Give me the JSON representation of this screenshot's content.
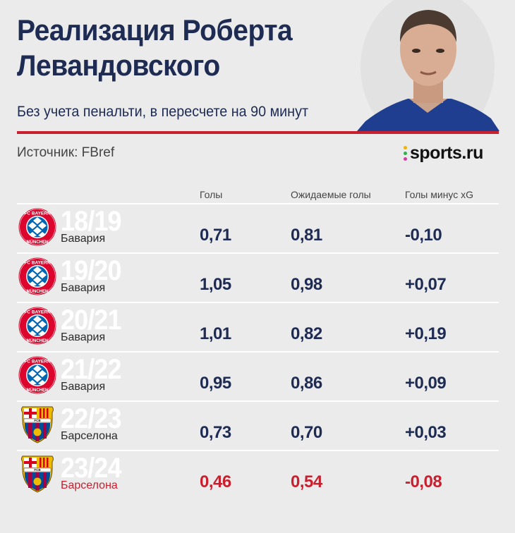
{
  "header": {
    "title": "Реализация Роберта Левандовского",
    "subtitle": "Без учета пенальти, в пересчете на 90 минут",
    "source": "Источник: FBref",
    "logo_text": "sports.ru"
  },
  "columns": [
    "Голы",
    "Ожидаемые голы",
    "Голы минус xG"
  ],
  "colors": {
    "accent_red": "#c8202e",
    "navy": "#1e2b52",
    "background": "#ebebeb"
  },
  "rows": [
    {
      "season": "18/19",
      "club": "Бавария",
      "crest": "bayern-crest",
      "goals": "0,71",
      "xg": "0,81",
      "diff": "-0,10"
    },
    {
      "season": "19/20",
      "club": "Бавария",
      "crest": "bayern-crest",
      "goals": "1,05",
      "xg": "0,98",
      "diff": "+0,07"
    },
    {
      "season": "20/21",
      "club": "Бавария",
      "crest": "bayern-crest",
      "goals": "1,01",
      "xg": "0,82",
      "diff": "+0,19"
    },
    {
      "season": "21/22",
      "club": "Бавария",
      "crest": "bayern-crest",
      "goals": "0,95",
      "xg": "0,86",
      "diff": "+0,09"
    },
    {
      "season": "22/23",
      "club": "Барселона",
      "crest": "barcelona-crest",
      "goals": "0,73",
      "xg": "0,70",
      "diff": "+0,03"
    },
    {
      "season": "23/24",
      "club": "Барселона",
      "crest": "barcelona-crest",
      "goals": "0,46",
      "xg": "0,54",
      "diff": "-0,08"
    }
  ],
  "chart_data": {
    "type": "table",
    "columns": [
      "Голы",
      "Ожидаемые голы",
      "Голы минус xG"
    ],
    "rows": [
      {
        "season": "18/19",
        "club": "Бавария",
        "values": [
          0.71,
          0.81,
          -0.1
        ]
      },
      {
        "season": "19/20",
        "club": "Бавария",
        "values": [
          1.05,
          0.98,
          0.07
        ]
      },
      {
        "season": "20/21",
        "club": "Бавария",
        "values": [
          1.01,
          0.82,
          0.19
        ]
      },
      {
        "season": "21/22",
        "club": "Бавария",
        "values": [
          0.95,
          0.86,
          0.09
        ]
      },
      {
        "season": "22/23",
        "club": "Барселона",
        "values": [
          0.73,
          0.7,
          0.03
        ]
      },
      {
        "season": "23/24",
        "club": "Барселона",
        "values": [
          0.46,
          0.54,
          -0.08
        ]
      }
    ]
  }
}
